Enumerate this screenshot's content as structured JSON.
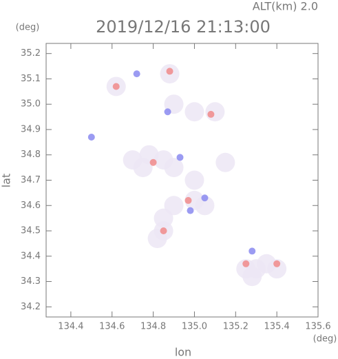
{
  "chart_data": {
    "type": "scatter",
    "title": "2019/12/16 21:13:00",
    "subtitle": "ALT(km)  2.0",
    "x_label": "lon",
    "y_label": "lat",
    "x_unit": "(deg)",
    "y_unit": "(deg)",
    "xlim": [
      134.28,
      135.6
    ],
    "ylim": [
      34.16,
      35.24
    ],
    "xticks": [
      134.4,
      134.6,
      134.8,
      {
        "value": 135.0,
        "label": "135.0"
      },
      135.2,
      135.4,
      135.6
    ],
    "yticks": [
      34.2,
      34.3,
      34.4,
      34.5,
      34.6,
      34.7,
      34.8,
      34.9,
      {
        "value": 35.0,
        "label": "35.0"
      },
      35.1,
      35.2
    ],
    "series": [
      {
        "color": "#ece6f4",
        "size": 14,
        "x": [
          134.62,
          134.88,
          134.9,
          135.0,
          135.1,
          134.7,
          134.78,
          134.85,
          134.75,
          134.9,
          135.15,
          135.0,
          134.9,
          135.0,
          134.85,
          134.85,
          134.82,
          135.05,
          135.25,
          135.3,
          135.35,
          135.4,
          135.28
        ],
        "y": [
          35.07,
          35.12,
          35.0,
          34.97,
          34.97,
          34.78,
          34.8,
          34.78,
          34.75,
          34.75,
          34.77,
          34.7,
          34.6,
          34.62,
          34.55,
          34.5,
          34.47,
          34.6,
          34.35,
          34.35,
          34.37,
          34.35,
          34.32
        ]
      },
      {
        "color": "#f08a8a",
        "size": 5,
        "x": [
          134.62,
          134.88,
          134.8,
          134.85,
          135.25,
          135.4,
          135.08,
          134.97
        ],
        "y": [
          35.07,
          35.13,
          34.77,
          34.5,
          34.37,
          34.37,
          34.96,
          34.62
        ]
      },
      {
        "color": "#8a8af0",
        "size": 5,
        "x": [
          134.72,
          134.87,
          134.93,
          135.05,
          135.28,
          134.5,
          134.98
        ],
        "y": [
          35.12,
          34.97,
          34.79,
          34.63,
          34.42,
          34.87,
          34.58
        ]
      }
    ]
  }
}
